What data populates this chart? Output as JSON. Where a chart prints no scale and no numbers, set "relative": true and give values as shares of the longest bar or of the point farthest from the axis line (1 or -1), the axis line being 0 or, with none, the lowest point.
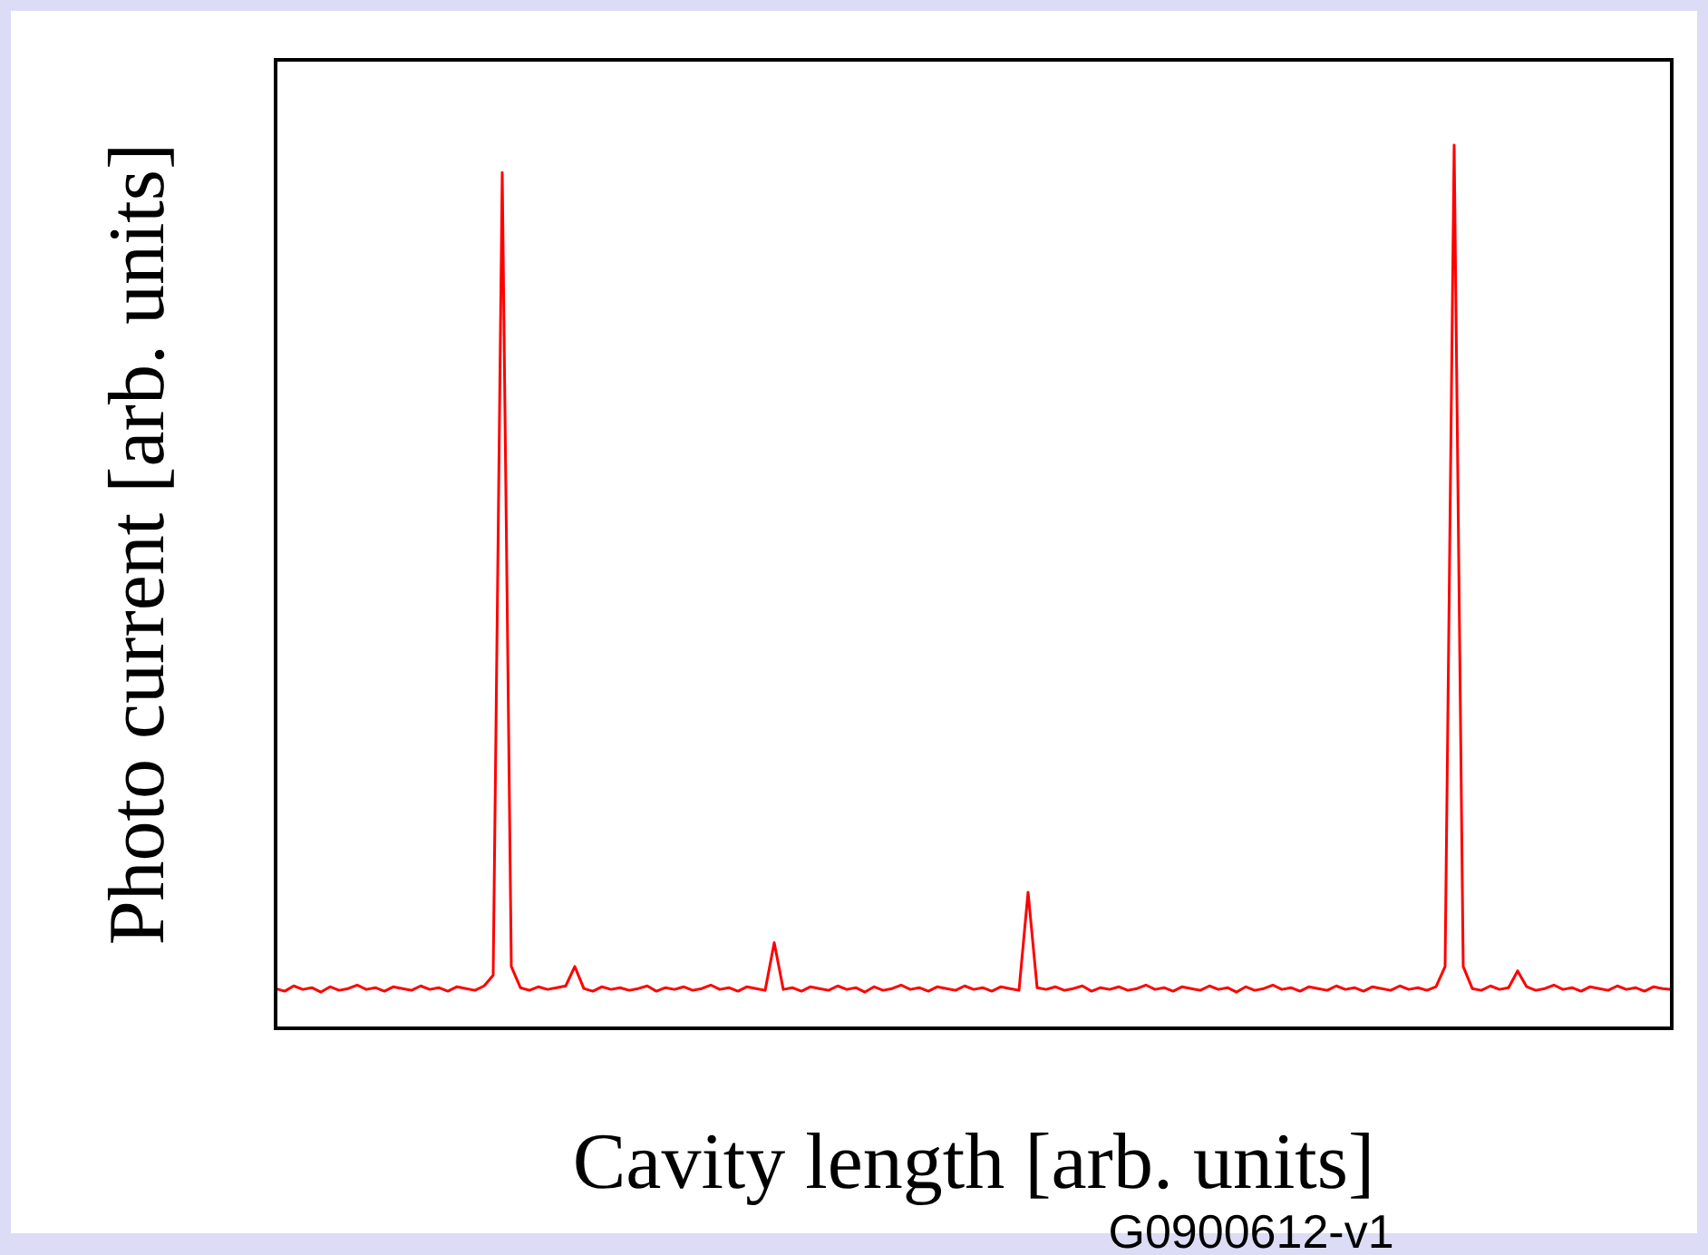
{
  "chart_data": {
    "type": "line",
    "relative": true,
    "xlabel": "Cavity length [arb. units]",
    "ylabel": "Photo current [arb. units]",
    "annotations": [
      "G0900612-v1"
    ],
    "categories": [
      null,
      null,
      null,
      null,
      null,
      null,
      null,
      null,
      null,
      null,
      null,
      null,
      null,
      null,
      null,
      null,
      null,
      null,
      null,
      null,
      null,
      null,
      null,
      null,
      null,
      null,
      null,
      null,
      null,
      null,
      null,
      null,
      null,
      null,
      null,
      null,
      null,
      null,
      null,
      null,
      null,
      null,
      null,
      null,
      null,
      null,
      null,
      null,
      null,
      null,
      null,
      null,
      null,
      null,
      null,
      null,
      null,
      null,
      null,
      null,
      null,
      null,
      null,
      null,
      null,
      null,
      null,
      null,
      null,
      null,
      null,
      null,
      null,
      null,
      null,
      null,
      null,
      null,
      null,
      null,
      null,
      null,
      null,
      null,
      null,
      null,
      null,
      null,
      null,
      null,
      null,
      null,
      null,
      null,
      null,
      null,
      null,
      null,
      null,
      null,
      null,
      null,
      null,
      null,
      null,
      null,
      null,
      null,
      null,
      null,
      null,
      null,
      null,
      null,
      null,
      null,
      null,
      null,
      null,
      null,
      null,
      null,
      null,
      null,
      null,
      null,
      null,
      null,
      null,
      null,
      null,
      null,
      null,
      null,
      null,
      null,
      null,
      null,
      null,
      null,
      null,
      null,
      null,
      null,
      null,
      null,
      null,
      null,
      null,
      null,
      null,
      null,
      null,
      null,
      null
    ],
    "series": [
      {
        "color": "#ff0000",
        "values": [
          0.045,
          0.042,
          0.048,
          0.044,
          0.046,
          0.041,
          0.047,
          0.043,
          0.045,
          0.049,
          0.044,
          0.046,
          0.042,
          0.047,
          0.045,
          0.043,
          0.048,
          0.044,
          0.046,
          0.042,
          0.047,
          0.045,
          0.043,
          0.048,
          0.06,
          0.969,
          0.07,
          0.046,
          0.043,
          0.047,
          0.044,
          0.046,
          0.048,
          0.07,
          0.045,
          0.042,
          0.047,
          0.044,
          0.046,
          0.043,
          0.045,
          0.048,
          0.042,
          0.046,
          0.044,
          0.047,
          0.043,
          0.045,
          0.049,
          0.044,
          0.046,
          0.042,
          0.047,
          0.045,
          0.043,
          0.097,
          0.044,
          0.046,
          0.042,
          0.047,
          0.045,
          0.043,
          0.048,
          0.044,
          0.046,
          0.041,
          0.047,
          0.043,
          0.045,
          0.049,
          0.044,
          0.046,
          0.042,
          0.047,
          0.045,
          0.043,
          0.048,
          0.044,
          0.046,
          0.042,
          0.047,
          0.045,
          0.043,
          0.154,
          0.046,
          0.044,
          0.047,
          0.043,
          0.045,
          0.048,
          0.042,
          0.046,
          0.044,
          0.047,
          0.043,
          0.045,
          0.049,
          0.044,
          0.046,
          0.042,
          0.047,
          0.045,
          0.043,
          0.048,
          0.044,
          0.046,
          0.041,
          0.047,
          0.043,
          0.045,
          0.049,
          0.044,
          0.046,
          0.042,
          0.047,
          0.045,
          0.043,
          0.048,
          0.044,
          0.046,
          0.042,
          0.047,
          0.045,
          0.043,
          0.048,
          0.044,
          0.046,
          0.043,
          0.047,
          0.07,
          1,
          0.07,
          0.045,
          0.043,
          0.048,
          0.044,
          0.046,
          0.065,
          0.047,
          0.043,
          0.045,
          0.049,
          0.044,
          0.046,
          0.042,
          0.047,
          0.045,
          0.043,
          0.048,
          0.044,
          0.046,
          0.042,
          0.047,
          0.045,
          0.044
        ]
      }
    ]
  }
}
